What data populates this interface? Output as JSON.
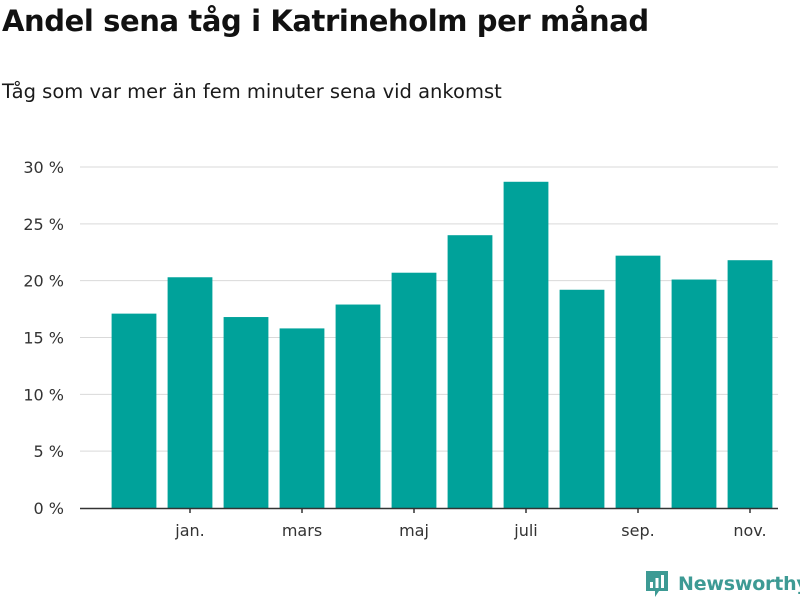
{
  "title": "Andel sena tåg i Katrineholm per månad",
  "subtitle": "Tåg som var mer än fem minuter sena vid ankomst",
  "brand": {
    "name": "Newsworthy",
    "color": "#3d9a94"
  },
  "chart_data": {
    "type": "bar",
    "title": "Andel sena tåg i Katrineholm per månad",
    "subtitle": "Tåg som var mer än fem minuter sena vid ankomst",
    "xlabel": "",
    "ylabel": "",
    "ylim": [
      0,
      30
    ],
    "ytick_values": [
      0,
      5,
      10,
      15,
      20,
      25,
      30
    ],
    "ytick_labels": [
      "0 %",
      "5 %",
      "10 %",
      "15 %",
      "20 %",
      "25 %",
      "30 %"
    ],
    "xtick_labels": [
      "",
      "jan.",
      "",
      "mars",
      "",
      "maj",
      "",
      "juli",
      "",
      "sep.",
      "",
      "nov."
    ],
    "values": [
      17.1,
      20.3,
      16.8,
      15.8,
      17.9,
      20.7,
      24.0,
      28.7,
      19.2,
      22.2,
      20.1,
      21.8
    ],
    "bar_color": "#00a29a",
    "grid": true
  }
}
